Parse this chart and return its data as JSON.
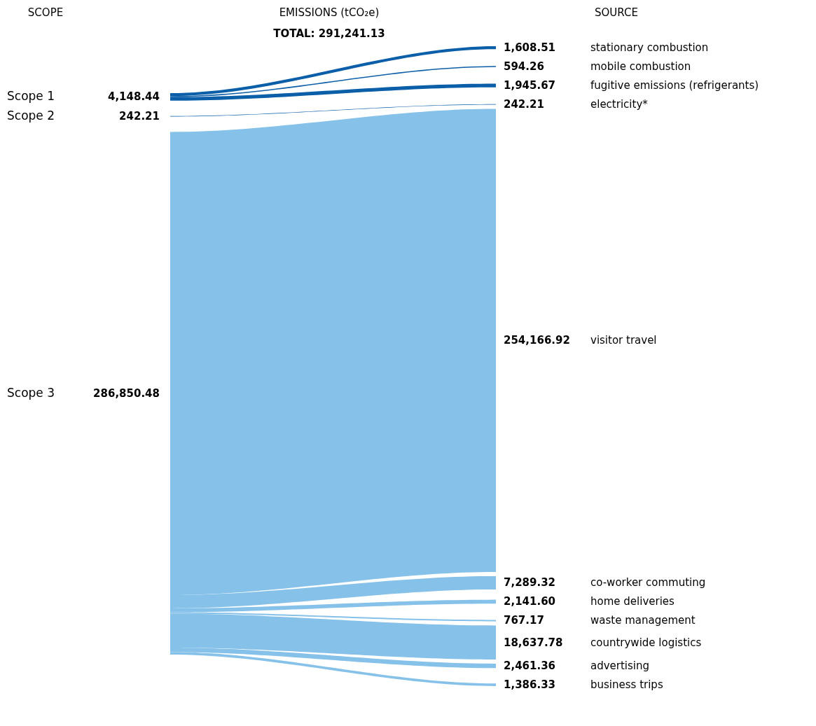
{
  "chart_data": {
    "type": "other",
    "title": "EMISSIONS (tCO₂e)",
    "subtitle": "TOTAL: 291,241.13",
    "annotations": [
      "SCOPE",
      "SOURCE"
    ],
    "categories": [
      "Scope 1",
      "Scope 2",
      "Scope 3"
    ],
    "values": [
      4148.44,
      242.21,
      286850.48
    ],
    "colors": [
      "#0b5ea8",
      "#0b5ea8",
      "#85c1e9"
    ],
    "data_labels": true,
    "value_labels": [
      "4,148.44",
      "242.21",
      "286,850.48"
    ],
    "series": [
      {
        "name": "stationary combustion",
        "values": [
          1608.51,
          null,
          null
        ],
        "value_labels": [
          "1,608.51",
          null,
          null
        ]
      },
      {
        "name": "mobile combustion",
        "values": [
          594.26,
          null,
          null
        ],
        "value_labels": [
          "594.26",
          null,
          null
        ]
      },
      {
        "name": "fugitive emissions (refrigerants)",
        "values": [
          1945.67,
          null,
          null
        ],
        "value_labels": [
          "1,945.67",
          null,
          null
        ]
      },
      {
        "name": "electricity*",
        "values": [
          null,
          242.21,
          null
        ],
        "value_labels": [
          null,
          "242.21",
          null
        ]
      },
      {
        "name": "visitor travel",
        "values": [
          null,
          null,
          254166.92
        ],
        "value_labels": [
          null,
          null,
          "254,166.92"
        ]
      },
      {
        "name": "co-worker commuting",
        "values": [
          null,
          null,
          7289.32
        ],
        "value_labels": [
          null,
          null,
          "7,289.32"
        ]
      },
      {
        "name": "home deliveries",
        "values": [
          null,
          null,
          2141.6
        ],
        "value_labels": [
          null,
          null,
          "2,141.60"
        ]
      },
      {
        "name": "waste management",
        "values": [
          null,
          null,
          767.17
        ],
        "value_labels": [
          null,
          null,
          "767.17"
        ]
      },
      {
        "name": "countrywide logistics",
        "values": [
          null,
          null,
          18637.78
        ],
        "value_labels": [
          null,
          null,
          "18,637.78"
        ]
      },
      {
        "name": "advertising",
        "values": [
          null,
          null,
          2461.36
        ],
        "value_labels": [
          null,
          null,
          "2,461.36"
        ]
      },
      {
        "name": "business trips",
        "values": [
          null,
          null,
          1386.33
        ],
        "value_labels": [
          null,
          null,
          "1,386.33"
        ]
      }
    ]
  }
}
